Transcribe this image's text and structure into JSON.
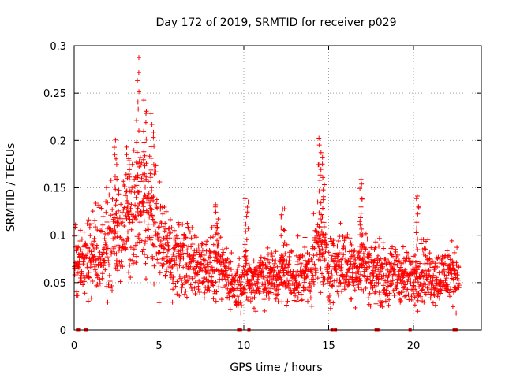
{
  "chart_data": {
    "type": "scatter",
    "title": "Day 172 of 2019, SRMTID for receiver p029",
    "xlabel": "GPS time / hours",
    "ylabel": "SRMTID / TECUs",
    "xlim": [
      0,
      24
    ],
    "ylim": [
      0,
      0.3
    ],
    "x_ticks": [
      0,
      5,
      10,
      15,
      20
    ],
    "x_tick_labels": [
      "0",
      "5",
      "10",
      "15",
      "20"
    ],
    "y_ticks": [
      0,
      0.05,
      0.1,
      0.15,
      0.2,
      0.25,
      0.3
    ],
    "y_tick_labels": [
      "0",
      "0.05",
      "0.1",
      "0.15",
      "0.2",
      "0.25",
      "0.3"
    ],
    "grid": true,
    "marker": "plus",
    "series": [
      {
        "name": "SRMTID",
        "color": "#ff0000",
        "trend": {
          "x": [
            0,
            0.5,
            1,
            1.5,
            2,
            2.5,
            3,
            3.5,
            4,
            4.5,
            5,
            5.5,
            6,
            6.5,
            7,
            7.5,
            8,
            8.5,
            9,
            9.5,
            10,
            10.5,
            11,
            11.5,
            12,
            12.5,
            13,
            13.5,
            14,
            14.5,
            15,
            15.5,
            16,
            16.5,
            17,
            17.5,
            18,
            18.5,
            19,
            19.5,
            20,
            20.5,
            21,
            21.5,
            22,
            22.5
          ],
          "y": [
            0.07,
            0.065,
            0.08,
            0.085,
            0.09,
            0.1,
            0.11,
            0.12,
            0.13,
            0.12,
            0.1,
            0.085,
            0.075,
            0.075,
            0.07,
            0.07,
            0.065,
            0.065,
            0.06,
            0.045,
            0.055,
            0.05,
            0.06,
            0.055,
            0.055,
            0.06,
            0.055,
            0.06,
            0.065,
            0.09,
            0.065,
            0.07,
            0.07,
            0.065,
            0.075,
            0.06,
            0.06,
            0.055,
            0.06,
            0.055,
            0.055,
            0.065,
            0.06,
            0.055,
            0.06,
            0.06
          ]
        },
        "peaks": [
          {
            "x": 3.2,
            "y": 0.19
          },
          {
            "x": 3.75,
            "y": 0.285
          },
          {
            "x": 4.15,
            "y": 0.24
          },
          {
            "x": 4.6,
            "y": 0.225
          },
          {
            "x": 2.45,
            "y": 0.198
          },
          {
            "x": 14.45,
            "y": 0.2
          },
          {
            "x": 14.65,
            "y": 0.18
          },
          {
            "x": 16.9,
            "y": 0.158
          },
          {
            "x": 20.2,
            "y": 0.14
          },
          {
            "x": 10.15,
            "y": 0.14
          },
          {
            "x": 12.3,
            "y": 0.13
          },
          {
            "x": 8.4,
            "y": 0.132
          }
        ],
        "gaps_at_zero": [
          0.2,
          0.3,
          0.7,
          9.7,
          9.8,
          10.3,
          15.2,
          15.4,
          17.8,
          17.9,
          19.8,
          22.4,
          22.5
        ]
      }
    ]
  }
}
